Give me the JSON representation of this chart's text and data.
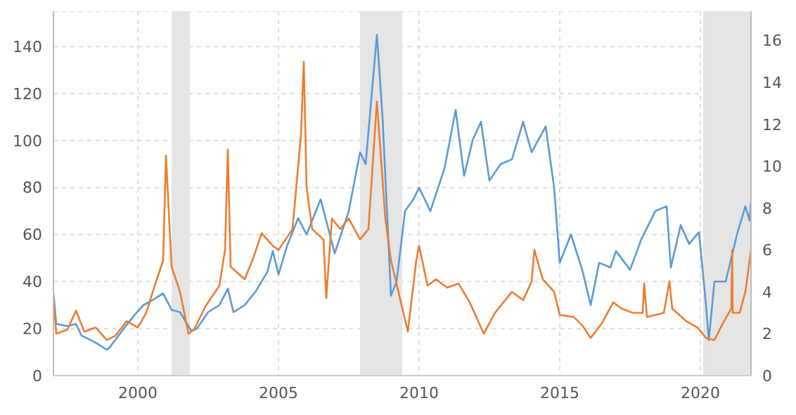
{
  "chart_data": {
    "type": "line",
    "xlim": [
      1997,
      2021.8
    ],
    "xticks": [
      2000,
      2005,
      2010,
      2015,
      2020
    ],
    "ylim": [
      0,
      155
    ],
    "yticks": [
      0,
      20,
      40,
      60,
      80,
      100,
      120,
      140
    ],
    "y2lim": [
      0,
      17.4
    ],
    "y2ticks": [
      0,
      2,
      4,
      6,
      8,
      10,
      12,
      14,
      16
    ],
    "grid": true,
    "line_style": "solid",
    "marker": "none",
    "bands": [
      {
        "axis": "x",
        "from": 2001.2,
        "to": 2001.85,
        "color": "#e5e5e5"
      },
      {
        "axis": "x",
        "from": 2007.9,
        "to": 2009.4,
        "color": "#e5e5e5"
      },
      {
        "axis": "x",
        "from": 2020.1,
        "to": 2021.8,
        "color": "#e5e5e5"
      }
    ],
    "series": [
      {
        "color": "#5b9bd5",
        "x": [
          1997.0,
          1997.1,
          1997.5,
          1997.8,
          1998.0,
          1998.5,
          1998.9,
          1999.0,
          1999.5,
          1999.9,
          2000.2,
          2000.5,
          2000.9,
          2001.2,
          2001.5,
          2001.9,
          2002.1,
          2002.5,
          2002.9,
          2003.2,
          2003.4,
          2003.8,
          2004.2,
          2004.6,
          2004.8,
          2005.0,
          2005.3,
          2005.7,
          2006.0,
          2006.5,
          2007.0,
          2007.5,
          2007.9,
          2008.1,
          2008.5,
          2008.7,
          2009.0,
          2009.2,
          2009.5,
          2009.8,
          2010.0,
          2010.4,
          2010.9,
          2011.3,
          2011.6,
          2011.9,
          2012.2,
          2012.5,
          2012.9,
          2013.3,
          2013.7,
          2014.0,
          2014.5,
          2014.8,
          2015.0,
          2015.4,
          2015.8,
          2016.1,
          2016.4,
          2016.8,
          2017.0,
          2017.5,
          2017.9,
          2018.4,
          2018.8,
          2018.95,
          2019.3,
          2019.6,
          2019.95,
          2020.2,
          2020.3,
          2020.5,
          2020.9,
          2021.3,
          2021.6,
          2021.75,
          2021.8
        ],
        "values": [
          35,
          22,
          21,
          22,
          17,
          14,
          11,
          12,
          20,
          26,
          30,
          32,
          35,
          28,
          27,
          19,
          20,
          27,
          30,
          37,
          27,
          30,
          36,
          44,
          53,
          43,
          55,
          67,
          60,
          75,
          52,
          70,
          95,
          90,
          145,
          110,
          34,
          40,
          70,
          75,
          80,
          70,
          88,
          113,
          85,
          100,
          108,
          83,
          90,
          92,
          108,
          95,
          106,
          80,
          48,
          60,
          45,
          30,
          48,
          46,
          53,
          45,
          58,
          70,
          72,
          46,
          64,
          56,
          61,
          30,
          15,
          40,
          40,
          60,
          72,
          66,
          74
        ]
      },
      {
        "color": "#ed7d31",
        "axis": "y2",
        "x": [
          1997.0,
          1997.1,
          1997.5,
          1997.8,
          1998.1,
          1998.5,
          1998.9,
          1999.2,
          1999.6,
          2000.0,
          2000.3,
          2000.6,
          2000.9,
          2001.0,
          2001.2,
          2001.5,
          2001.8,
          2002.0,
          2002.4,
          2002.9,
          2003.1,
          2003.2,
          2003.3,
          2003.8,
          2004.1,
          2004.4,
          2004.8,
          2005.0,
          2005.5,
          2005.8,
          2005.9,
          2006.0,
          2006.2,
          2006.6,
          2006.7,
          2006.9,
          2007.2,
          2007.5,
          2007.9,
          2008.2,
          2008.5,
          2008.8,
          2009.0,
          2009.3,
          2009.6,
          2009.9,
          2010.0,
          2010.3,
          2010.6,
          2011.0,
          2011.4,
          2011.8,
          2012.1,
          2012.3,
          2012.7,
          2013.3,
          2013.7,
          2014.0,
          2014.1,
          2014.4,
          2014.8,
          2015.0,
          2015.5,
          2015.8,
          2016.1,
          2016.5,
          2016.9,
          2017.2,
          2017.6,
          2017.95,
          2018.0,
          2018.1,
          2018.7,
          2018.9,
          2019.0,
          2019.5,
          2019.9,
          2020.2,
          2020.5,
          2020.8,
          2021.1,
          2021.13,
          2021.15,
          2021.4,
          2021.6,
          2021.8
        ],
        "values": [
          3.8,
          2.0,
          2.2,
          3.1,
          2.1,
          2.3,
          1.7,
          1.9,
          2.6,
          2.3,
          3.0,
          4.3,
          5.5,
          10.5,
          5.2,
          4.0,
          2.0,
          2.2,
          3.3,
          4.3,
          6.0,
          10.8,
          5.2,
          4.6,
          5.6,
          6.8,
          6.2,
          6.0,
          7.0,
          11.5,
          15.0,
          9.0,
          7.0,
          6.5,
          3.7,
          7.5,
          7.0,
          7.5,
          6.5,
          7.0,
          13.1,
          7.5,
          5.5,
          3.8,
          2.1,
          5.5,
          6.2,
          4.3,
          4.6,
          4.2,
          4.4,
          3.5,
          2.6,
          2.0,
          3.0,
          4.0,
          3.6,
          4.5,
          6.0,
          4.6,
          4.0,
          2.9,
          2.8,
          2.4,
          1.8,
          2.5,
          3.5,
          3.2,
          3.0,
          3.0,
          4.4,
          2.8,
          3.0,
          4.5,
          3.2,
          2.6,
          2.3,
          1.8,
          1.7,
          2.5,
          3.2,
          6.0,
          3.0,
          3.0,
          4.0,
          6.0
        ]
      }
    ]
  }
}
